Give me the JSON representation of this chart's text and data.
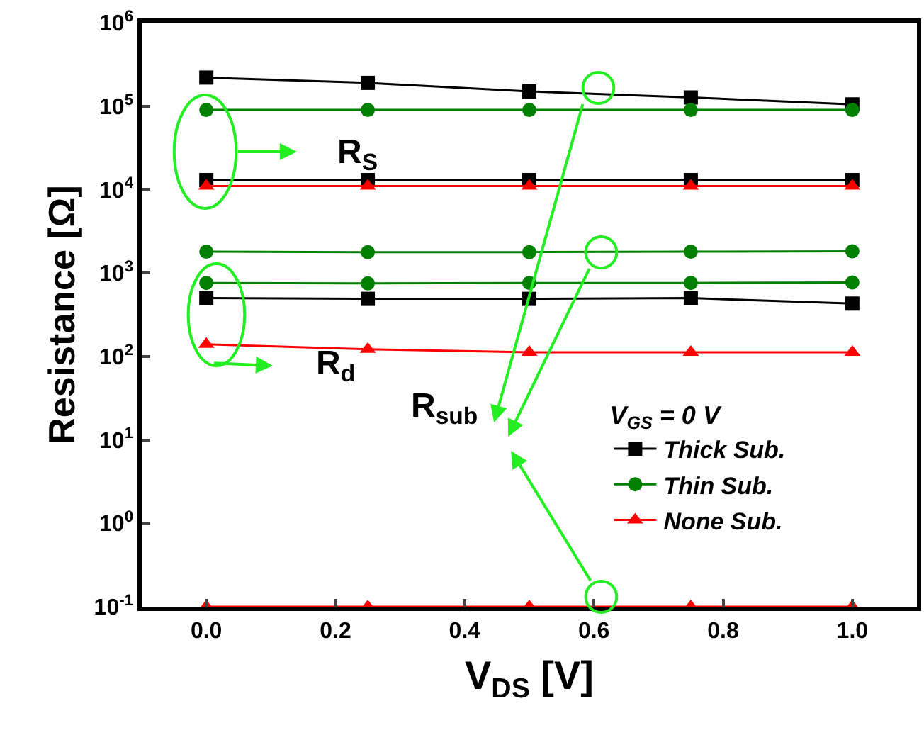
{
  "chart_data": {
    "type": "line",
    "xlabel": "V$_{DS}$ [V]",
    "ylabel": "Resistance [Ω]",
    "legend_title": "V$_{GS}$ = 0 V",
    "x": [
      0.0,
      0.25,
      0.5,
      0.75,
      1.0
    ],
    "series": [
      {
        "name": "Thick Sub.",
        "color": "#000000",
        "marker": "square",
        "values": [
          220000,
          190000,
          150000,
          127000,
          105000
        ]
      },
      {
        "color": "#000000",
        "marker": "square",
        "values": [
          13000,
          13000,
          13000,
          13000,
          13000
        ]
      },
      {
        "color": "#000000",
        "marker": "square",
        "values": [
          500,
          490,
          490,
          500,
          430
        ]
      },
      {
        "name": "Thin Sub.",
        "color": "#008000",
        "marker": "circle",
        "values": [
          90000,
          90000,
          90000,
          90000,
          90000
        ]
      },
      {
        "color": "#008000",
        "marker": "circle",
        "values": [
          1800,
          1780,
          1780,
          1800,
          1820
        ]
      },
      {
        "color": "#008000",
        "marker": "circle",
        "values": [
          760,
          750,
          760,
          760,
          770
        ]
      },
      {
        "name": "None Sub.",
        "color": "#ff0000",
        "marker": "triangle",
        "values": [
          11000,
          11000,
          11000,
          11000,
          11000
        ]
      },
      {
        "color": "#ff0000",
        "marker": "triangle",
        "values": [
          140,
          122,
          112,
          112,
          112
        ]
      },
      {
        "color": "#ff0000",
        "marker": "triangle",
        "values": [
          0.1,
          0.1,
          0.1,
          0.1,
          0.1
        ]
      }
    ],
    "log": "y",
    "xlim": [
      -0.1,
      1.1
    ],
    "xticks": [
      {
        "value": 0,
        "label": "0.0"
      },
      0.2,
      0.4,
      0.6,
      0.8,
      {
        "value": 1,
        "label": "1.0"
      }
    ],
    "ylim": [
      0.1,
      1000000
    ],
    "yticks": [
      {
        "value": 0.1,
        "label": "10$^{-1}$"
      },
      {
        "value": 1,
        "label": "10$^{0}$"
      },
      {
        "value": 10,
        "label": "10$^{1}$"
      },
      {
        "value": 100,
        "label": "10$^{2}$"
      },
      {
        "value": 1000,
        "label": "10$^{3}$"
      },
      {
        "value": 10000,
        "label": "10$^{4}$"
      },
      {
        "value": 100000,
        "label": "10$^{5}$"
      },
      {
        "value": 1000000,
        "label": "10$^{6}$"
      }
    ],
    "legend": "right",
    "line_style": "solid",
    "annotations": [
      "R$_{S}$",
      "R$_{d}$",
      "R$_{sub}$"
    ]
  }
}
